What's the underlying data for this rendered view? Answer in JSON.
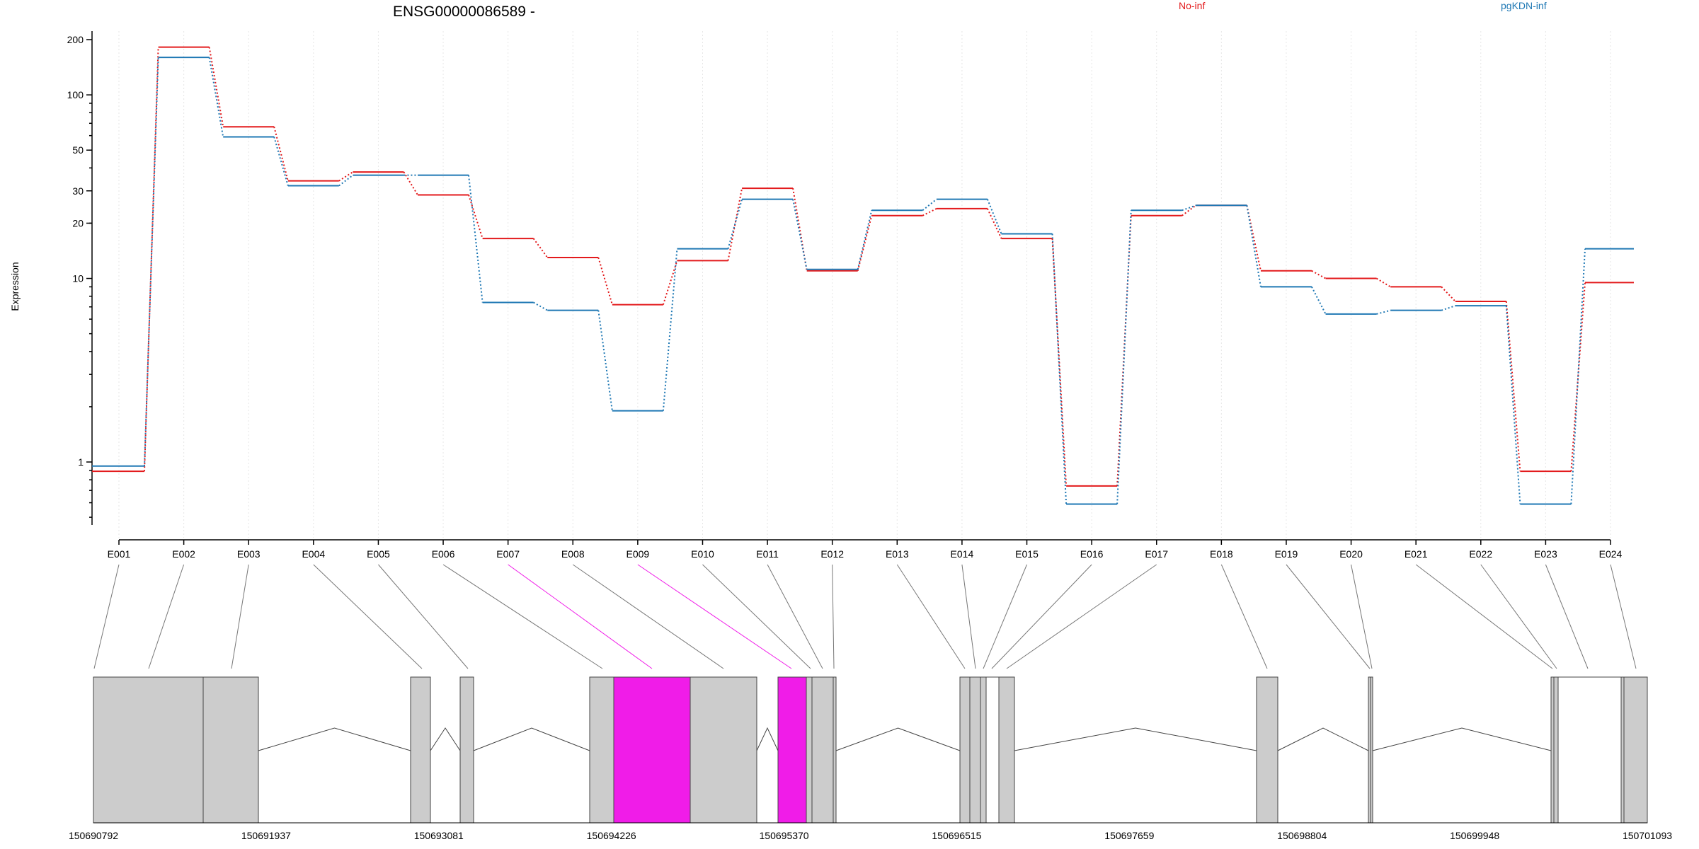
{
  "colors": {
    "series_red": "#e31a1c",
    "series_blue": "#1f78b4",
    "highlight": "#f01ce8",
    "exon_fill": "#cccccc",
    "exon_white": "#ffffff"
  },
  "chart_data": {
    "type": "line",
    "title": "ENSG00000086589 -",
    "ylabel": "Expression",
    "y_scale": "log",
    "ylim": [
      0.5,
      240
    ],
    "y_ticks": [
      1,
      10,
      20,
      30,
      50,
      100,
      200
    ],
    "categories": [
      "E001",
      "E002",
      "E003",
      "E004",
      "E005",
      "E006",
      "E007",
      "E008",
      "E009",
      "E010",
      "E011",
      "E012",
      "E013",
      "E014",
      "E015",
      "E016",
      "E017",
      "E018",
      "E019",
      "E020",
      "E021",
      "E022",
      "E023",
      "E024"
    ],
    "series": [
      {
        "name": "No-inf",
        "color": "#e31a1c",
        "values": [
          0.89,
          182,
          67,
          34,
          38,
          28.5,
          16.5,
          13,
          7.2,
          12.5,
          31,
          11,
          22,
          24,
          16.5,
          0.74,
          22,
          25,
          11,
          10,
          9,
          7.5,
          0.89,
          9.5
        ]
      },
      {
        "name": "pgKDN-inf",
        "color": "#1f78b4",
        "values": [
          0.95,
          160,
          59,
          32,
          36.5,
          36.5,
          7.4,
          6.7,
          1.9,
          14.5,
          27,
          11.2,
          23.5,
          27,
          17.5,
          0.59,
          23.5,
          25,
          9,
          6.4,
          6.7,
          7.1,
          0.59,
          14.5
        ]
      }
    ],
    "highlighted_exons": [
      "E007",
      "E009"
    ],
    "gene_track": {
      "coordinate_labels": [
        "150690792",
        "150691937",
        "150693081",
        "150694226",
        "150695370",
        "150696515",
        "150697659",
        "150698804",
        "150699948",
        "150701093"
      ],
      "coord_start": 150690792,
      "coord_end": 150701093
    }
  }
}
